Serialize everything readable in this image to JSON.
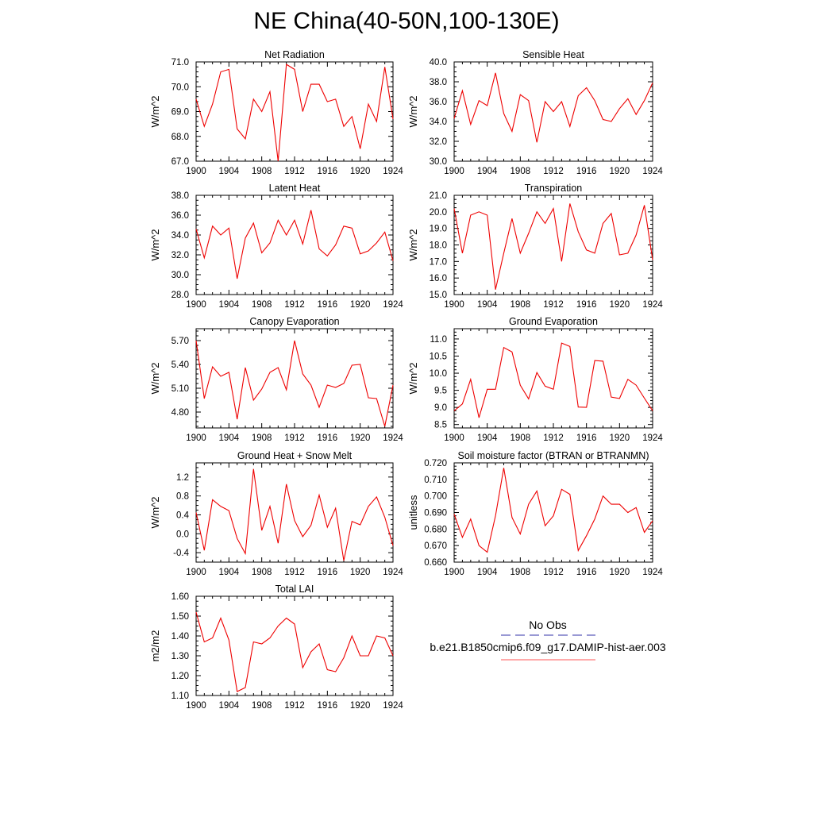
{
  "title": "NE China(40-50N,100-130E)",
  "legend": {
    "entries": [
      {
        "label": "No Obs",
        "color": "#3333aa",
        "style": "dashed"
      },
      {
        "label": "b.e21.B1850cmip6.f09_g17.DAMIP-hist-aer.003",
        "color": "#ff5555",
        "style": "solid"
      }
    ]
  },
  "chart_data": [
    {
      "type": "line",
      "title": "Net Radiation",
      "ylabel": "W/m^2",
      "xlim": [
        1900,
        1924
      ],
      "ylim": [
        67.0,
        71.0
      ],
      "xticks": [
        1900,
        1904,
        1908,
        1912,
        1916,
        1920,
        1924
      ],
      "yticks": [
        67.0,
        68.0,
        69.0,
        70.0,
        71.0
      ],
      "ydecimals": 1,
      "yminor": 5,
      "series": [
        {
          "color": "#ee0000",
          "x": [
            1900,
            1901,
            1902,
            1903,
            1904,
            1905,
            1906,
            1907,
            1908,
            1909,
            1910,
            1911,
            1912,
            1913,
            1914,
            1915,
            1916,
            1917,
            1918,
            1919,
            1920,
            1921,
            1922,
            1923,
            1924
          ],
          "y": [
            69.5,
            68.4,
            69.3,
            70.6,
            70.7,
            68.3,
            67.9,
            69.5,
            69.0,
            69.8,
            67.0,
            70.9,
            70.7,
            69.0,
            70.1,
            70.1,
            69.4,
            69.5,
            68.4,
            68.8,
            67.5,
            69.3,
            68.6,
            70.8,
            68.7
          ]
        }
      ]
    },
    {
      "type": "line",
      "title": "Sensible Heat",
      "ylabel": "W/m^2",
      "xlim": [
        1900,
        1924
      ],
      "ylim": [
        30.0,
        40.0
      ],
      "xticks": [
        1900,
        1904,
        1908,
        1912,
        1916,
        1920,
        1924
      ],
      "yticks": [
        30.0,
        32.0,
        34.0,
        36.0,
        38.0,
        40.0
      ],
      "ydecimals": 1,
      "yminor": 4,
      "series": [
        {
          "color": "#ee0000",
          "x": [
            1900,
            1901,
            1902,
            1903,
            1904,
            1905,
            1906,
            1907,
            1908,
            1909,
            1910,
            1911,
            1912,
            1913,
            1914,
            1915,
            1916,
            1917,
            1918,
            1919,
            1920,
            1921,
            1922,
            1923,
            1924
          ],
          "y": [
            34.3,
            37.1,
            33.7,
            36.1,
            35.6,
            38.9,
            34.8,
            33.0,
            36.7,
            36.1,
            31.9,
            36.0,
            35.0,
            36.0,
            33.5,
            36.6,
            37.4,
            36.1,
            34.2,
            34.0,
            35.3,
            36.3,
            34.7,
            36.1,
            37.9
          ]
        }
      ]
    },
    {
      "type": "line",
      "title": "Latent Heat",
      "ylabel": "W/m^2",
      "xlim": [
        1900,
        1924
      ],
      "ylim": [
        28.0,
        38.0
      ],
      "xticks": [
        1900,
        1904,
        1908,
        1912,
        1916,
        1920,
        1924
      ],
      "yticks": [
        28.0,
        30.0,
        32.0,
        34.0,
        36.0,
        38.0
      ],
      "ydecimals": 1,
      "yminor": 4,
      "series": [
        {
          "color": "#ee0000",
          "x": [
            1900,
            1901,
            1902,
            1903,
            1904,
            1905,
            1906,
            1907,
            1908,
            1909,
            1910,
            1911,
            1912,
            1913,
            1914,
            1915,
            1916,
            1917,
            1918,
            1919,
            1920,
            1921,
            1922,
            1923,
            1924
          ],
          "y": [
            34.6,
            31.7,
            34.9,
            34.0,
            34.7,
            29.6,
            33.7,
            35.2,
            32.2,
            33.2,
            35.5,
            34.0,
            35.5,
            33.1,
            36.5,
            32.6,
            31.9,
            33.0,
            34.9,
            34.7,
            32.1,
            32.4,
            33.2,
            34.3,
            31.4
          ]
        }
      ]
    },
    {
      "type": "line",
      "title": "Transpiration",
      "ylabel": "W/m^2",
      "xlim": [
        1900,
        1924
      ],
      "ylim": [
        15.0,
        21.0
      ],
      "xticks": [
        1900,
        1904,
        1908,
        1912,
        1916,
        1920,
        1924
      ],
      "yticks": [
        15.0,
        16.0,
        17.0,
        18.0,
        19.0,
        20.0,
        21.0
      ],
      "ydecimals": 1,
      "yminor": 4,
      "series": [
        {
          "color": "#ee0000",
          "x": [
            1900,
            1901,
            1902,
            1903,
            1904,
            1905,
            1906,
            1907,
            1908,
            1909,
            1910,
            1911,
            1912,
            1913,
            1914,
            1915,
            1916,
            1917,
            1918,
            1919,
            1920,
            1921,
            1922,
            1923,
            1924
          ],
          "y": [
            20.2,
            17.5,
            19.8,
            20.0,
            19.8,
            15.3,
            17.5,
            19.6,
            17.5,
            18.7,
            20.0,
            19.3,
            20.2,
            17.0,
            20.5,
            18.8,
            17.7,
            17.5,
            19.3,
            19.9,
            17.4,
            17.5,
            18.6,
            20.4,
            17.1
          ]
        }
      ]
    },
    {
      "type": "line",
      "title": "Canopy Evaporation",
      "ylabel": "W/m^2",
      "xlim": [
        1900,
        1924
      ],
      "ylim": [
        4.6,
        5.85
      ],
      "xticks": [
        1900,
        1904,
        1908,
        1912,
        1916,
        1920,
        1924
      ],
      "yticks": [
        4.8,
        5.1,
        5.4,
        5.7
      ],
      "ydecimals": 2,
      "yminor": 5,
      "series": [
        {
          "color": "#ee0000",
          "x": [
            1900,
            1901,
            1902,
            1903,
            1904,
            1905,
            1906,
            1907,
            1908,
            1909,
            1910,
            1911,
            1912,
            1913,
            1914,
            1915,
            1916,
            1917,
            1918,
            1919,
            1920,
            1921,
            1922,
            1923,
            1924
          ],
          "y": [
            5.7,
            4.97,
            5.37,
            5.25,
            5.3,
            4.71,
            5.36,
            4.95,
            5.09,
            5.3,
            5.36,
            5.08,
            5.7,
            5.28,
            5.14,
            4.86,
            5.14,
            5.11,
            5.16,
            5.39,
            5.4,
            4.98,
            4.97,
            4.62,
            5.14
          ]
        }
      ]
    },
    {
      "type": "line",
      "title": "Ground Evaporation",
      "ylabel": "W/m^2",
      "xlim": [
        1900,
        1924
      ],
      "ylim": [
        8.4,
        11.3
      ],
      "xticks": [
        1900,
        1904,
        1908,
        1912,
        1916,
        1920,
        1924
      ],
      "yticks": [
        8.5,
        9.0,
        9.5,
        10.0,
        10.5,
        11.0
      ],
      "ydecimals": 1,
      "yminor": 5,
      "series": [
        {
          "color": "#ee0000",
          "x": [
            1900,
            1901,
            1902,
            1903,
            1904,
            1905,
            1906,
            1907,
            1908,
            1909,
            1910,
            1911,
            1912,
            1913,
            1914,
            1915,
            1916,
            1917,
            1918,
            1919,
            1920,
            1921,
            1922,
            1923,
            1924
          ],
          "y": [
            8.9,
            9.1,
            9.82,
            8.7,
            9.53,
            9.53,
            10.75,
            10.62,
            9.65,
            9.25,
            10.02,
            9.62,
            9.53,
            10.88,
            10.78,
            9.01,
            9.0,
            10.37,
            10.35,
            9.3,
            9.26,
            9.82,
            9.65,
            9.27,
            8.9
          ]
        }
      ]
    },
    {
      "type": "line",
      "title": "Ground Heat + Snow Melt",
      "ylabel": "W/m^2",
      "xlim": [
        1900,
        1924
      ],
      "ylim": [
        -0.6,
        1.5
      ],
      "xticks": [
        1900,
        1904,
        1908,
        1912,
        1916,
        1920,
        1924
      ],
      "yticks": [
        -0.4,
        0.0,
        0.4,
        0.8,
        1.2
      ],
      "ydecimals": 1,
      "yminor": 4,
      "series": [
        {
          "color": "#ee0000",
          "x": [
            1900,
            1901,
            1902,
            1903,
            1904,
            1905,
            1906,
            1907,
            1908,
            1909,
            1910,
            1911,
            1912,
            1913,
            1914,
            1915,
            1916,
            1917,
            1918,
            1919,
            1920,
            1921,
            1922,
            1923,
            1924
          ],
          "y": [
            0.45,
            -0.35,
            0.72,
            0.58,
            0.49,
            -0.1,
            -0.42,
            1.37,
            0.07,
            0.58,
            -0.2,
            1.05,
            0.28,
            -0.06,
            0.18,
            0.82,
            0.14,
            0.54,
            -0.57,
            0.26,
            0.19,
            0.58,
            0.78,
            0.35,
            -0.25
          ]
        }
      ]
    },
    {
      "type": "line",
      "title": "Soil moisture factor (BTRAN or BTRANMN)",
      "ylabel": "unitless",
      "xlim": [
        1900,
        1924
      ],
      "ylim": [
        0.66,
        0.72
      ],
      "xticks": [
        1900,
        1904,
        1908,
        1912,
        1916,
        1920,
        1924
      ],
      "yticks": [
        0.66,
        0.67,
        0.68,
        0.69,
        0.7,
        0.71,
        0.72
      ],
      "ydecimals": 3,
      "yminor": 5,
      "series": [
        {
          "color": "#ee0000",
          "x": [
            1900,
            1901,
            1902,
            1903,
            1904,
            1905,
            1906,
            1907,
            1908,
            1909,
            1910,
            1911,
            1912,
            1913,
            1914,
            1915,
            1916,
            1917,
            1918,
            1919,
            1920,
            1921,
            1922,
            1923,
            1924
          ],
          "y": [
            0.689,
            0.675,
            0.686,
            0.67,
            0.666,
            0.688,
            0.717,
            0.687,
            0.677,
            0.695,
            0.703,
            0.682,
            0.688,
            0.704,
            0.701,
            0.667,
            0.676,
            0.686,
            0.7,
            0.695,
            0.695,
            0.69,
            0.693,
            0.678,
            0.685
          ]
        }
      ]
    },
    {
      "type": "line",
      "title": "Total LAI",
      "ylabel": "m2/m2",
      "xlim": [
        1900,
        1924
      ],
      "ylim": [
        1.1,
        1.6
      ],
      "xticks": [
        1900,
        1904,
        1908,
        1912,
        1916,
        1920,
        1924
      ],
      "yticks": [
        1.1,
        1.2,
        1.3,
        1.4,
        1.5,
        1.6
      ],
      "ydecimals": 2,
      "yminor": 4,
      "series": [
        {
          "color": "#ee0000",
          "x": [
            1900,
            1901,
            1902,
            1903,
            1904,
            1905,
            1906,
            1907,
            1908,
            1909,
            1910,
            1911,
            1912,
            1913,
            1914,
            1915,
            1916,
            1917,
            1918,
            1919,
            1920,
            1921,
            1922,
            1923,
            1924
          ],
          "y": [
            1.52,
            1.37,
            1.39,
            1.49,
            1.38,
            1.12,
            1.14,
            1.37,
            1.36,
            1.39,
            1.45,
            1.49,
            1.46,
            1.24,
            1.32,
            1.36,
            1.23,
            1.22,
            1.29,
            1.4,
            1.3,
            1.3,
            1.4,
            1.39,
            1.3
          ]
        }
      ]
    }
  ]
}
